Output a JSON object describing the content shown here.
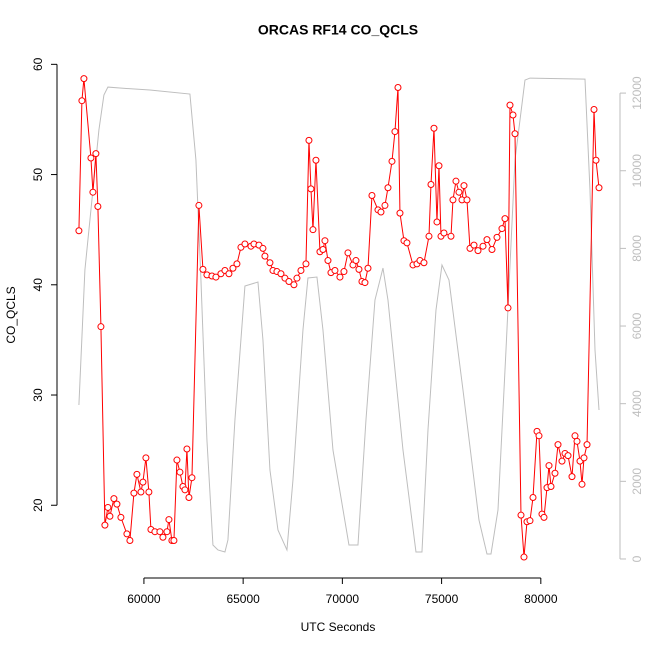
{
  "chart_data": {
    "type": "line",
    "title": "ORCAS RF14 CO_QCLS",
    "xlabel": "UTC Seconds",
    "ylabel": "CO_QCLS",
    "xlim": [
      55620,
      83990
    ],
    "ylim": [
      13.4,
      61.3
    ],
    "y2lim": [
      -490,
      13110
    ],
    "xticks": [
      60000,
      65000,
      70000,
      75000,
      80000
    ],
    "yticks": [
      20,
      30,
      40,
      50,
      60
    ],
    "y2ticks": [
      0,
      2000,
      4000,
      6000,
      8000,
      10000,
      12000
    ],
    "grid": false,
    "series": [
      {
        "color": "#ff0000",
        "marker": "circle",
        "x": [
          56724,
          56875,
          56976,
          57330,
          57430,
          57580,
          57680,
          57833,
          58034,
          58185,
          58286,
          58488,
          58640,
          58840,
          59143,
          59294,
          59496,
          59647,
          59850,
          59950,
          60100,
          60250,
          60353,
          60554,
          60806,
          60958,
          61160,
          61260,
          61410,
          61512,
          61663,
          61814,
          61966,
          62066,
          62167,
          62268,
          62420,
          62770,
          62974,
          63175,
          63427,
          63629,
          63880,
          64082,
          64284,
          64486,
          64687,
          64889,
          65090,
          65393,
          65544,
          65796,
          65998,
          66098,
          66350,
          66502,
          66703,
          66905,
          67106,
          67308,
          67560,
          67711,
          67913,
          68165,
          68316,
          68417,
          68518,
          68669,
          68870,
          69022,
          69122,
          69274,
          69425,
          69626,
          69878,
          70080,
          70282,
          70534,
          70685,
          70836,
          70987,
          71138,
          71290,
          71491,
          71794,
          71945,
          72146,
          72298,
          72500,
          72650,
          72802,
          72902,
          73104,
          73255,
          73558,
          73759,
          73910,
          74112,
          74364,
          74465,
          74616,
          74767,
          74868,
          74969,
          75120,
          75473,
          75573,
          75724,
          75876,
          76027,
          76128,
          76279,
          76430,
          76632,
          76834,
          77086,
          77287,
          77539,
          77791,
          78043,
          78194,
          78346,
          78446,
          78598,
          78698,
          79001,
          79152,
          79303,
          79454,
          79606,
          79808,
          79908,
          80059,
          80160,
          80311,
          80412,
          80513,
          80714,
          80866,
          81067,
          81218,
          81370,
          81571,
          81722,
          81823,
          81974,
          82075,
          82176,
          82328,
          82680,
          82781,
          82932
        ],
        "values": [
          44.9,
          56.7,
          58.7,
          51.5,
          48.4,
          51.9,
          47.1,
          36.2,
          18.2,
          19.8,
          19.0,
          20.6,
          20.1,
          18.9,
          17.4,
          16.8,
          21.1,
          22.8,
          21.2,
          22.1,
          24.3,
          21.2,
          17.8,
          17.6,
          17.6,
          17.1,
          17.6,
          18.7,
          16.8,
          16.8,
          24.1,
          23.0,
          21.7,
          21.4,
          25.1,
          20.7,
          22.5,
          47.2,
          41.4,
          40.9,
          40.8,
          40.7,
          41.0,
          41.3,
          41.0,
          41.5,
          41.9,
          43.4,
          43.7,
          43.5,
          43.7,
          43.6,
          43.3,
          42.6,
          42.0,
          41.3,
          41.2,
          41.0,
          40.6,
          40.3,
          40.0,
          40.6,
          41.3,
          41.9,
          53.1,
          48.7,
          45.0,
          51.3,
          43.0,
          43.2,
          44.0,
          42.2,
          41.1,
          41.3,
          40.7,
          41.2,
          42.9,
          41.8,
          42.2,
          41.4,
          40.3,
          40.2,
          41.5,
          48.1,
          46.8,
          46.6,
          47.2,
          48.8,
          51.2,
          53.9,
          57.9,
          46.5,
          44.0,
          43.8,
          41.8,
          41.9,
          42.2,
          42.0,
          44.4,
          49.1,
          54.2,
          45.7,
          50.8,
          44.4,
          44.7,
          44.4,
          47.7,
          49.4,
          48.4,
          47.7,
          49.0,
          47.7,
          43.3,
          43.6,
          43.1,
          43.5,
          44.1,
          43.2,
          44.3,
          45.1,
          46.0,
          37.9,
          56.3,
          55.4,
          53.7,
          19.1,
          15.3,
          18.5,
          18.6,
          20.7,
          26.7,
          26.3,
          19.2,
          18.9,
          21.6,
          23.6,
          21.7,
          22.9,
          25.5,
          24.0,
          24.7,
          24.5,
          22.6,
          26.3,
          25.8,
          24.0,
          21.9,
          24.3,
          25.5,
          55.9,
          51.3,
          48.8
        ]
      },
      {
        "color": "#bebebe",
        "axis": "y2",
        "x": [
          56724,
          57026,
          57430,
          57732,
          57984,
          58186,
          58790,
          60302,
          62318,
          62621,
          62873,
          63175,
          63478,
          63730,
          64082,
          64234,
          64586,
          65090,
          65746,
          65998,
          66350,
          66754,
          67207,
          67510,
          68014,
          68266,
          68719,
          69022,
          69526,
          70332,
          70786,
          71189,
          71642,
          72046,
          72298,
          73054,
          73709,
          74011,
          74314,
          74717,
          75019,
          75372,
          76078,
          76884,
          77287,
          77489,
          77842,
          78245,
          78698,
          79202,
          79454,
          82226,
          82478,
          82730,
          82932
        ],
        "values": [
          3966,
          7443,
          9503,
          11050,
          11950,
          12155,
          12130,
          12080,
          11975,
          10275,
          7185,
          3064,
          360,
          232,
          180,
          490,
          3580,
          7030,
          7134,
          5640,
          2292,
          747,
          232,
          2035,
          5900,
          7237,
          7262,
          5900,
          2807,
          360,
          360,
          3580,
          6670,
          7494,
          6670,
          2807,
          180,
          180,
          3322,
          6413,
          7571,
          7185,
          4352,
          1004,
          129,
          129,
          1262,
          5382,
          10275,
          12336,
          12387,
          12361,
          9503,
          5382,
          3837
        ]
      }
    ]
  }
}
